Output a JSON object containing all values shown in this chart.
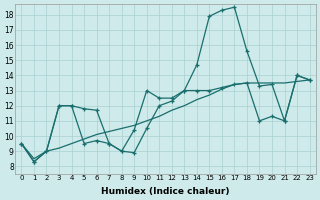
{
  "xlabel": "Humidex (Indice chaleur)",
  "xlim": [
    -0.5,
    23.5
  ],
  "ylim": [
    7.5,
    18.7
  ],
  "yticks": [
    8,
    9,
    10,
    11,
    12,
    13,
    14,
    15,
    16,
    17,
    18
  ],
  "xticks": [
    0,
    1,
    2,
    3,
    4,
    5,
    6,
    7,
    8,
    9,
    10,
    11,
    12,
    13,
    14,
    15,
    16,
    17,
    18,
    19,
    20,
    21,
    22,
    23
  ],
  "bg_color": "#ceeaea",
  "grid_color": "#aad0d0",
  "line_color": "#1a6e6e",
  "line1_x": [
    0,
    1,
    2,
    3,
    4,
    5,
    6,
    7,
    8,
    9,
    10,
    11,
    12,
    13,
    14,
    15,
    16,
    17,
    18,
    19,
    20,
    21,
    22,
    23
  ],
  "line1_y": [
    9.5,
    8.3,
    9.0,
    12.0,
    12.0,
    11.8,
    11.7,
    9.5,
    9.0,
    10.4,
    13.0,
    12.5,
    12.5,
    13.0,
    14.7,
    17.9,
    18.3,
    18.5,
    15.6,
    13.3,
    13.4,
    11.0,
    14.0,
    13.7
  ],
  "line2_x": [
    0,
    1,
    2,
    3,
    4,
    5,
    6,
    7,
    8,
    9,
    10,
    11,
    12,
    13,
    14,
    15,
    16,
    17,
    18,
    19,
    20,
    21,
    22,
    23
  ],
  "line2_y": [
    9.5,
    8.5,
    9.0,
    9.2,
    9.5,
    9.8,
    10.1,
    10.3,
    10.5,
    10.7,
    11.0,
    11.3,
    11.7,
    12.0,
    12.4,
    12.7,
    13.1,
    13.4,
    13.5,
    13.5,
    13.5,
    13.5,
    13.6,
    13.7
  ],
  "line3_x": [
    0,
    1,
    2,
    3,
    4,
    5,
    6,
    7,
    8,
    9,
    10,
    11,
    12,
    13,
    14,
    15,
    16,
    17,
    18,
    19,
    20,
    21,
    22,
    23
  ],
  "line3_y": [
    9.5,
    8.3,
    9.0,
    12.0,
    12.0,
    9.5,
    9.7,
    9.5,
    9.0,
    8.9,
    10.5,
    12.0,
    12.3,
    13.0,
    13.0,
    13.0,
    13.2,
    13.4,
    13.5,
    11.0,
    11.3,
    11.0,
    14.0,
    13.7
  ]
}
